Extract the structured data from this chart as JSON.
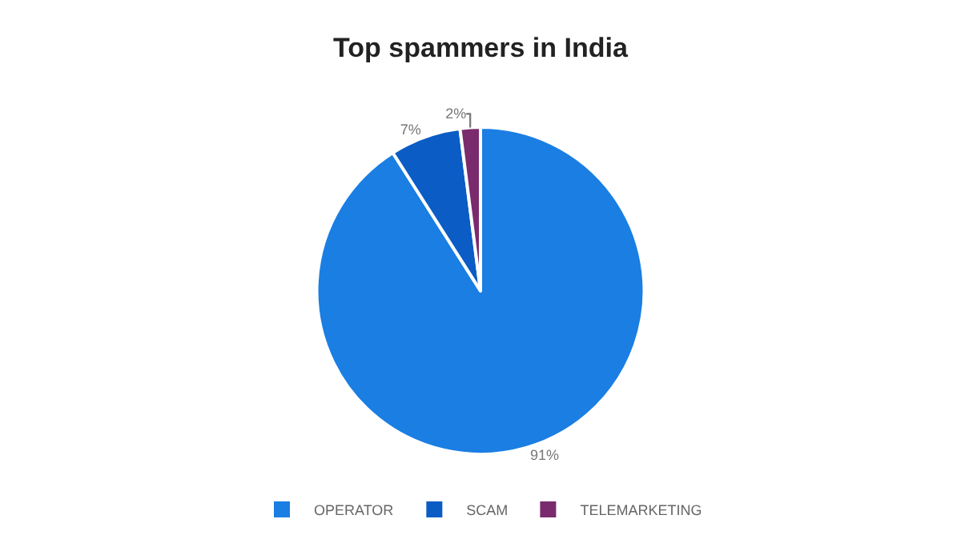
{
  "chart_data": {
    "type": "pie",
    "title": "Top spammers in India",
    "categories": [
      "OPERATOR",
      "SCAM",
      "TELEMARKETING"
    ],
    "values": [
      91,
      7,
      2
    ],
    "value_labels": [
      "91%",
      "7%",
      "2%"
    ],
    "colors": [
      "#1a7ee3",
      "#0b5cc5",
      "#7a2b6d"
    ],
    "legend": "bottom"
  }
}
